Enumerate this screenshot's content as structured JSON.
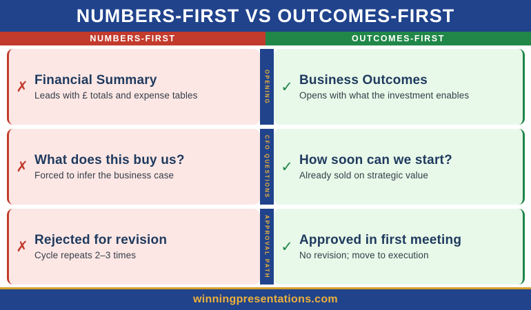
{
  "title": "NUMBERS-FIRST VS OUTCOMES-FIRST",
  "columns": {
    "left": "NUMBERS-FIRST",
    "right": "OUTCOMES-FIRST"
  },
  "marks": {
    "cross": "✗",
    "check": "✓"
  },
  "rows": [
    {
      "category": "OPENING",
      "left": {
        "heading": "Financial Summary",
        "detail": "Leads with £ totals and expense tables"
      },
      "right": {
        "heading": "Business Outcomes",
        "detail": "Opens with what the investment enables"
      }
    },
    {
      "category": "CFO QUESTIONS",
      "left": {
        "heading": "What does this buy us?",
        "detail": "Forced to infer the business case"
      },
      "right": {
        "heading": "How soon can we start?",
        "detail": "Already sold on strategic value"
      }
    },
    {
      "category": "APPROVAL PATH",
      "left": {
        "heading": "Rejected for revision",
        "detail": "Cycle repeats 2–3 times"
      },
      "right": {
        "heading": "Approved in first meeting",
        "detail": "No revision; move to execution"
      }
    }
  ],
  "footer": {
    "website": "winningpresentations.com"
  },
  "colors": {
    "background_blue": "#20438c",
    "numbers_red": "#c23b2c",
    "outcomes_green": "#218749",
    "card_pink": "#fce7e5",
    "card_light_green": "#e8f9e9",
    "heading_navy": "#1f3a5e",
    "accent_gold": "#efb13a",
    "divider_gold": "#d6a02d"
  }
}
